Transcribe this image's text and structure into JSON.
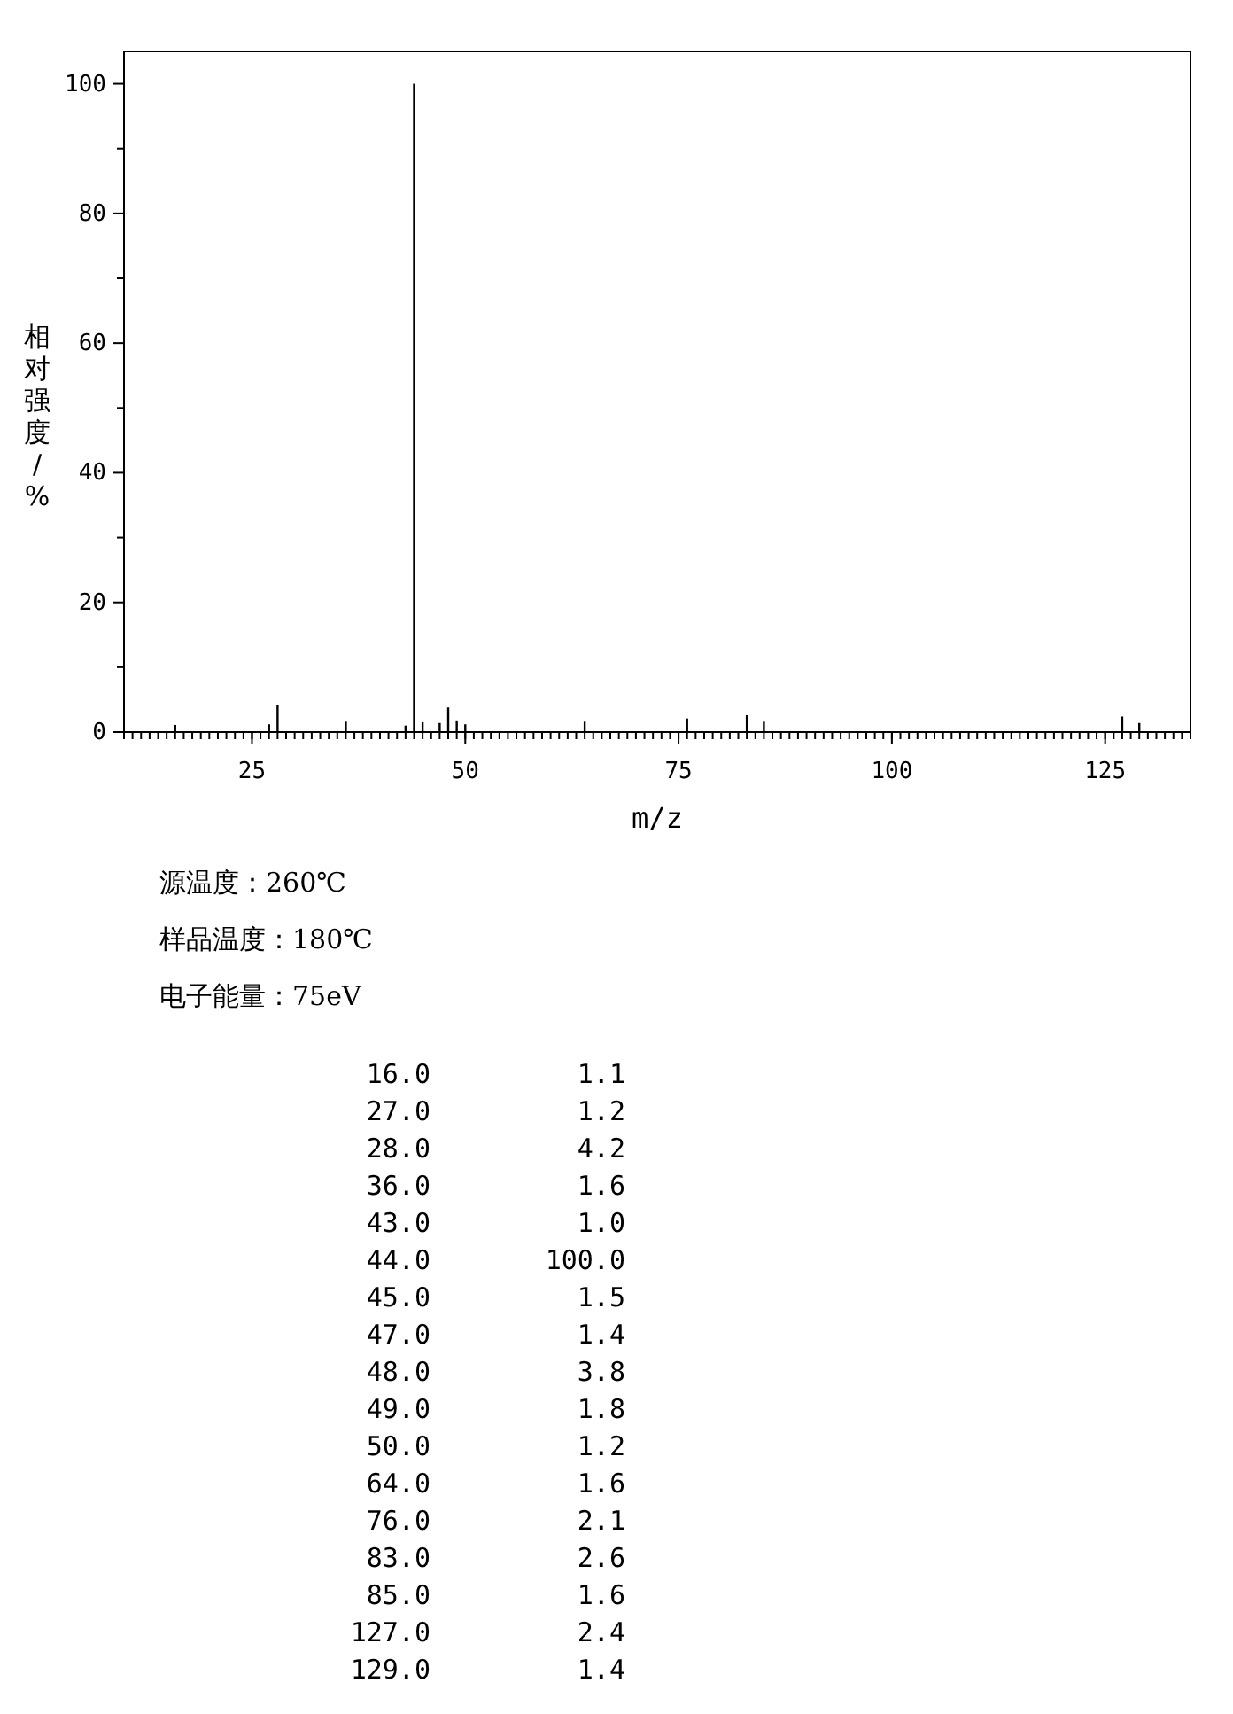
{
  "chart_data": [
    {
      "type": "bar",
      "xlabel": "m/z",
      "ylabel": "相对强度/%",
      "x": [
        16,
        27,
        28,
        36,
        43,
        44,
        45,
        47,
        48,
        49,
        50,
        64,
        76,
        83,
        85,
        127,
        129
      ],
      "values": [
        1.1,
        1.2,
        4.2,
        1.6,
        1.0,
        100.0,
        1.5,
        1.4,
        3.8,
        1.8,
        1.2,
        1.6,
        2.1,
        2.6,
        1.6,
        2.4,
        1.4
      ],
      "color": "#000000",
      "xlim": [
        10,
        135
      ],
      "xticks": [
        25,
        50,
        75,
        100,
        125
      ],
      "ylim": [
        0,
        105
      ],
      "yticks": [
        0,
        {
          "value": 10,
          "label": null
        },
        20,
        {
          "value": 30,
          "label": null
        },
        40,
        {
          "value": 50,
          "label": null
        },
        60,
        {
          "value": 70,
          "label": null
        },
        80,
        {
          "value": 90,
          "label": null
        },
        100
      ],
      "annotations": [
        "源温度：260℃",
        "样品温度：180℃",
        "电子能量：75eV"
      ]
    },
    {
      "type": "other",
      "annotations": [
        "16.0",
        "1.1",
        "27.0",
        "1.2",
        "28.0",
        "4.2",
        "36.0",
        "1.6",
        "43.0",
        "1.0",
        "44.0",
        "100.0",
        "45.0",
        "1.5",
        "47.0",
        "1.4",
        "48.0",
        "3.8",
        "49.0",
        "1.8",
        "50.0",
        "1.2",
        "64.0",
        "1.6",
        "76.0",
        "2.1",
        "83.0",
        "2.6",
        "85.0",
        "1.6",
        "127.0",
        "2.4",
        "129.0",
        "1.4"
      ]
    }
  ]
}
